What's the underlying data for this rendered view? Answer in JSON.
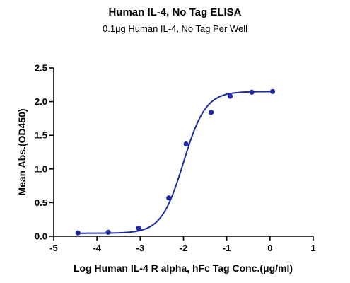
{
  "chart_data": {
    "type": "scatter",
    "title": "Human IL-4, No Tag ELISA",
    "subtitle": "0.1μg Human IL-4, No Tag Per Well",
    "xlabel": "Log Human IL-4 R alpha, hFc Tag Conc.(μg/ml)",
    "ylabel": "Mean Abs.(OD450)",
    "xlim": [
      -5,
      1
    ],
    "ylim": [
      0,
      2.5
    ],
    "xticks": [
      "-5",
      "-4",
      "-3",
      "-2",
      "-1",
      "0",
      "1"
    ],
    "yticks": [
      "0.0",
      "0.5",
      "1.0",
      "1.5",
      "2.0",
      "2.5"
    ],
    "grid": false,
    "series": [
      {
        "x": [
          -4.44,
          -3.74,
          -3.04,
          -2.34,
          -1.94,
          -1.36,
          -0.92,
          -0.42,
          0.06
        ],
        "y": [
          0.05,
          0.06,
          0.12,
          0.57,
          1.37,
          1.84,
          2.08,
          2.14,
          2.15
        ],
        "fit": "4PL sigmoid curve"
      }
    ],
    "fit_params": {
      "bottom": 0.045,
      "top": 2.15,
      "logEC50": -2.0,
      "hill": 1.7
    },
    "colors": {
      "series": "#1f2a9e",
      "axis": "#000000"
    }
  }
}
